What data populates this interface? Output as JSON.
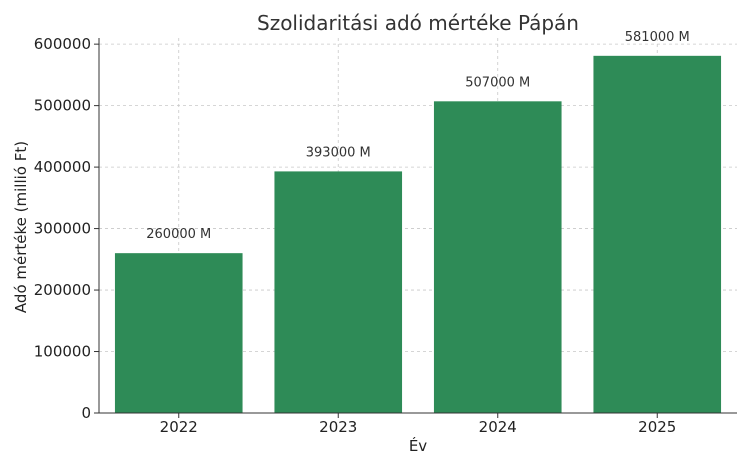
{
  "chart_data": {
    "type": "bar",
    "title": "Szolidaritási adó mértéke Pápán",
    "xlabel": "Év",
    "ylabel": "Adó mértéke (millió Ft)",
    "categories": [
      "2022",
      "2023",
      "2024",
      "2025"
    ],
    "values": [
      260000,
      393000,
      507000,
      581000
    ],
    "data_labels": [
      "260000 M",
      "393000 M",
      "507000 M",
      "581000 M"
    ],
    "ylim": [
      0,
      610000
    ],
    "yticks": [
      0,
      100000,
      200000,
      300000,
      400000,
      500000,
      600000
    ],
    "ytick_labels": [
      "0",
      "100000",
      "200000",
      "300000",
      "400000",
      "500000",
      "600000"
    ],
    "grid": true,
    "bar_color": "#2e8b57"
  }
}
